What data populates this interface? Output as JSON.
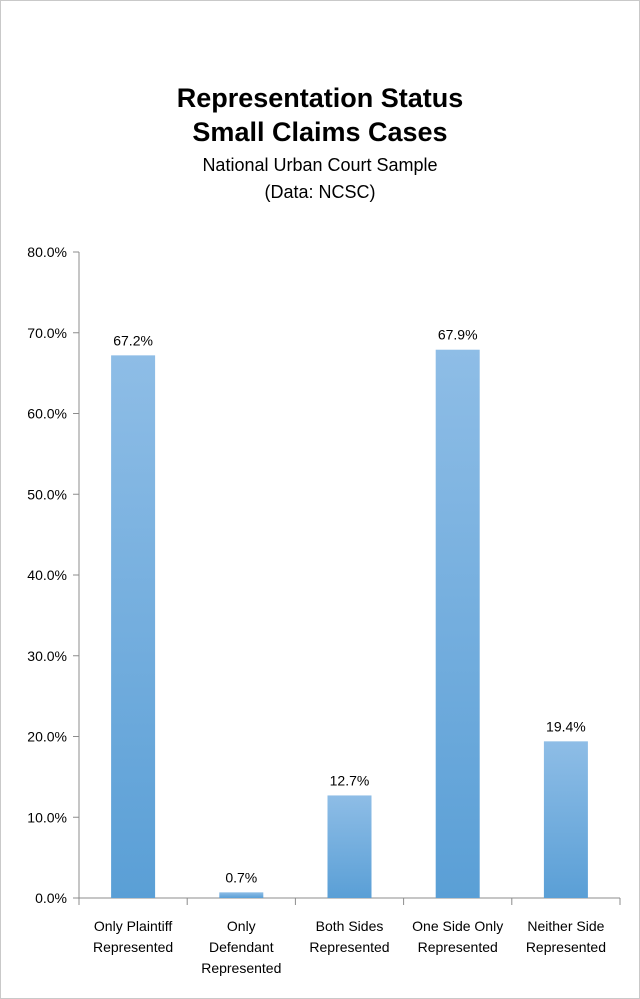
{
  "chart_data": {
    "type": "bar",
    "title_lines": [
      "Representation Status",
      "Small Claims Cases"
    ],
    "subtitle_lines": [
      "National Urban Court Sample",
      "(Data: NCSC)"
    ],
    "categories": [
      [
        "Only Plaintiff",
        "Represented"
      ],
      [
        "Only",
        "Defendant",
        "Represented"
      ],
      [
        "Both Sides",
        "Represented"
      ],
      [
        "One Side Only",
        "Represented"
      ],
      [
        "Neither Side",
        "Represented"
      ]
    ],
    "values": [
      67.2,
      0.7,
      12.7,
      67.9,
      19.4
    ],
    "data_labels": [
      "67.2%",
      "0.7%",
      "12.7%",
      "67.9%",
      "19.4%"
    ],
    "ylim": [
      0,
      80
    ],
    "yticks": [
      0,
      10,
      20,
      30,
      40,
      50,
      60,
      70,
      80
    ],
    "ytick_labels": [
      "0.0%",
      "10.0%",
      "20.0%",
      "30.0%",
      "40.0%",
      "50.0%",
      "60.0%",
      "70.0%",
      "80.0%"
    ],
    "xlabel": "",
    "ylabel": "",
    "grid": false,
    "legend": "none",
    "bar_color_light": "#8ebde6",
    "bar_color_dark": "#5a9fd6"
  }
}
